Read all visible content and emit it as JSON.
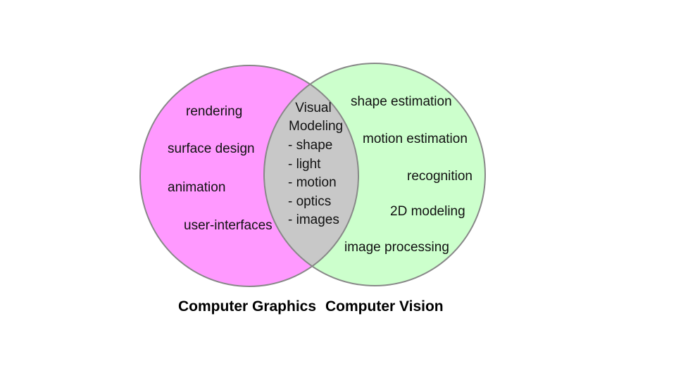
{
  "colors": {
    "graphics_fill": "#ff99ff",
    "vision_fill": "#ccffcc",
    "overlap_fill": "#c8c8c8",
    "outline": "#888888"
  },
  "graphics": {
    "label": "Computer Graphics",
    "items": [
      "rendering",
      "surface design",
      "animation",
      "user-interfaces"
    ]
  },
  "vision": {
    "label": "Computer Vision",
    "items": [
      "shape estimation",
      "motion estimation",
      "recognition",
      "2D modeling",
      "image processing"
    ]
  },
  "overlap": {
    "title_line1": "Visual",
    "title_line2": "Modeling",
    "items": [
      "- shape",
      "- light",
      "- motion",
      "- optics",
      "- images"
    ]
  }
}
